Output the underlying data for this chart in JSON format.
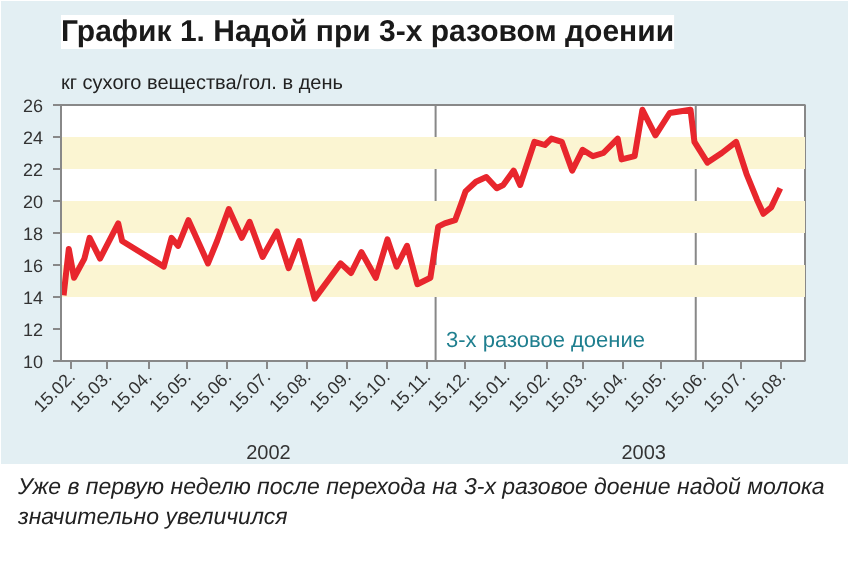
{
  "chart_data": {
    "type": "line",
    "title": "График 1. Надой при 3-х разовом доении",
    "ylabel": "кг сухого вещества/гол. в день",
    "x": [
      "2002-02-09",
      "2002-02-13",
      "2002-02-17",
      "2002-02-25",
      "2002-03-01",
      "2002-03-09",
      "2002-03-23",
      "2002-03-26",
      "2002-04-27",
      "2002-05-03",
      "2002-05-08",
      "2002-05-16",
      "2002-05-31",
      "2002-06-07",
      "2002-06-16",
      "2002-06-26",
      "2002-07-02",
      "2002-07-12",
      "2002-07-23",
      "2002-08-01",
      "2002-08-09",
      "2002-08-21",
      "2002-09-10",
      "2002-09-18",
      "2002-09-26",
      "2002-10-07",
      "2002-10-16",
      "2002-10-23",
      "2002-10-31",
      "2002-11-08",
      "2002-11-18",
      "2002-11-24",
      "2002-11-29",
      "2002-12-07",
      "2002-12-12",
      "2002-12-15",
      "2002-12-23",
      "2002-12-31",
      "2003-01-08",
      "2003-01-13",
      "2003-01-21",
      "2003-01-26",
      "2003-02-06",
      "2003-02-14",
      "2003-02-19",
      "2003-02-27",
      "2003-03-07",
      "2003-03-15",
      "2003-03-23",
      "2003-03-31",
      "2003-04-11",
      "2003-04-14",
      "2003-04-24",
      "2003-04-30",
      "2003-05-10",
      "2003-05-21",
      "2003-06-06",
      "2003-06-09",
      "2003-06-19",
      "2003-06-30",
      "2003-07-11",
      "2003-07-19",
      "2003-07-27",
      "2003-08-01",
      "2003-08-07",
      "2003-08-14"
    ],
    "series": [
      {
        "color": "#e8262d",
        "values": [
          14.1,
          17.0,
          15.2,
          16.4,
          17.7,
          16.4,
          18.6,
          17.5,
          15.9,
          17.7,
          17.2,
          18.8,
          16.1,
          17.5,
          19.5,
          17.7,
          18.7,
          16.5,
          18.1,
          15.8,
          17.5,
          13.9,
          16.1,
          15.5,
          16.8,
          15.2,
          17.6,
          15.9,
          17.2,
          14.8,
          15.2,
          18.4,
          18.6,
          18.8,
          19.9,
          20.6,
          21.2,
          21.5,
          20.8,
          21.0,
          21.9,
          21.0,
          23.7,
          23.5,
          23.9,
          23.7,
          21.9,
          23.2,
          22.8,
          23.0,
          23.9,
          22.6,
          22.8,
          25.7,
          24.1,
          25.5,
          25.7,
          23.7,
          22.4,
          23.0,
          23.7,
          21.7,
          20.1,
          19.2,
          19.6,
          20.8
        ]
      }
    ],
    "xlim": [
      "2002-02-07",
      "2003-09-02"
    ],
    "xticks": [
      {
        "value": "2002-02-15",
        "label": "15.02."
      },
      {
        "value": "2002-03-15",
        "label": "15.03."
      },
      {
        "value": "2002-04-15",
        "label": "15.04."
      },
      {
        "value": "2002-05-15",
        "label": "15.05."
      },
      {
        "value": "2002-06-15",
        "label": "15.06."
      },
      {
        "value": "2002-07-15",
        "label": "15.07."
      },
      {
        "value": "2002-08-15",
        "label": "15.08."
      },
      {
        "value": "2002-09-15",
        "label": "15.09."
      },
      {
        "value": "2002-10-15",
        "label": "15.10."
      },
      {
        "value": "2002-11-15",
        "label": "15.11."
      },
      {
        "value": "2002-12-15",
        "label": "15.12."
      },
      {
        "value": "2003-01-15",
        "label": "15.01."
      },
      {
        "value": "2003-02-15",
        "label": "15.02."
      },
      {
        "value": "2003-03-15",
        "label": "15.03."
      },
      {
        "value": "2003-04-15",
        "label": "15.04."
      },
      {
        "value": "2003-05-15",
        "label": "15.05."
      },
      {
        "value": "2003-06-15",
        "label": "15.06."
      },
      {
        "value": "2003-07-15",
        "label": "15.07."
      },
      {
        "value": "2003-08-15",
        "label": "15.08."
      }
    ],
    "ylim": [
      10,
      26
    ],
    "yticks": [
      10,
      12,
      14,
      16,
      18,
      20,
      22,
      24,
      26
    ],
    "bands": [
      {
        "axis": "y",
        "from": 14,
        "to": 16,
        "color": "#fbf5d2"
      },
      {
        "axis": "y",
        "from": 18,
        "to": 20,
        "color": "#fbf5d2"
      },
      {
        "axis": "y",
        "from": 22,
        "to": 24,
        "color": "#fbf5d2"
      },
      {
        "axis": "x",
        "from": "2002-11-22",
        "to": "2003-06-10",
        "color": "#ffffff",
        "label": "3-х разовое доение"
      }
    ],
    "annotations": [
      "2002",
      "2003",
      "Уже в первую неделю после перехода на 3-х разовое доение надой молока значительно увеличился"
    ],
    "grid": false,
    "marker": "none",
    "line_style": "solid"
  }
}
